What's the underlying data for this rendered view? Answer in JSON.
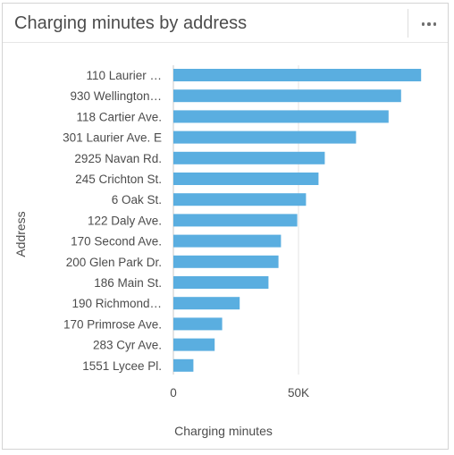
{
  "card": {
    "title": "Charging minutes by address",
    "menu_icon": "more-horizontal-icon"
  },
  "chart_data": {
    "type": "bar",
    "orientation": "horizontal",
    "categories": [
      "110 Laurier …",
      "930 Wellington…",
      "118 Cartier Ave.",
      "301 Laurier Ave. E",
      "2925 Navan Rd.",
      "245 Crichton St.",
      "6 Oak St.",
      "122 Daly Ave.",
      "170 Second Ave.",
      "200 Glen Park Dr.",
      "186 Main St.",
      "190 Richmond…",
      "170 Primrose Ave.",
      "283 Cyr Ave.",
      "1551 Lycee Pl."
    ],
    "values": [
      99000,
      91000,
      86000,
      73000,
      60500,
      58000,
      53000,
      49500,
      43000,
      42000,
      38000,
      26500,
      19500,
      16500,
      8000
    ],
    "xlabel": "Charging minutes",
    "ylabel": "Address",
    "xticks": [
      {
        "value": 0,
        "label": "0"
      },
      {
        "value": 50000,
        "label": "50K"
      }
    ],
    "xlim": [
      0,
      100000
    ],
    "bar_color": "#5aaee0",
    "gridlines": true,
    "legend": "none"
  }
}
